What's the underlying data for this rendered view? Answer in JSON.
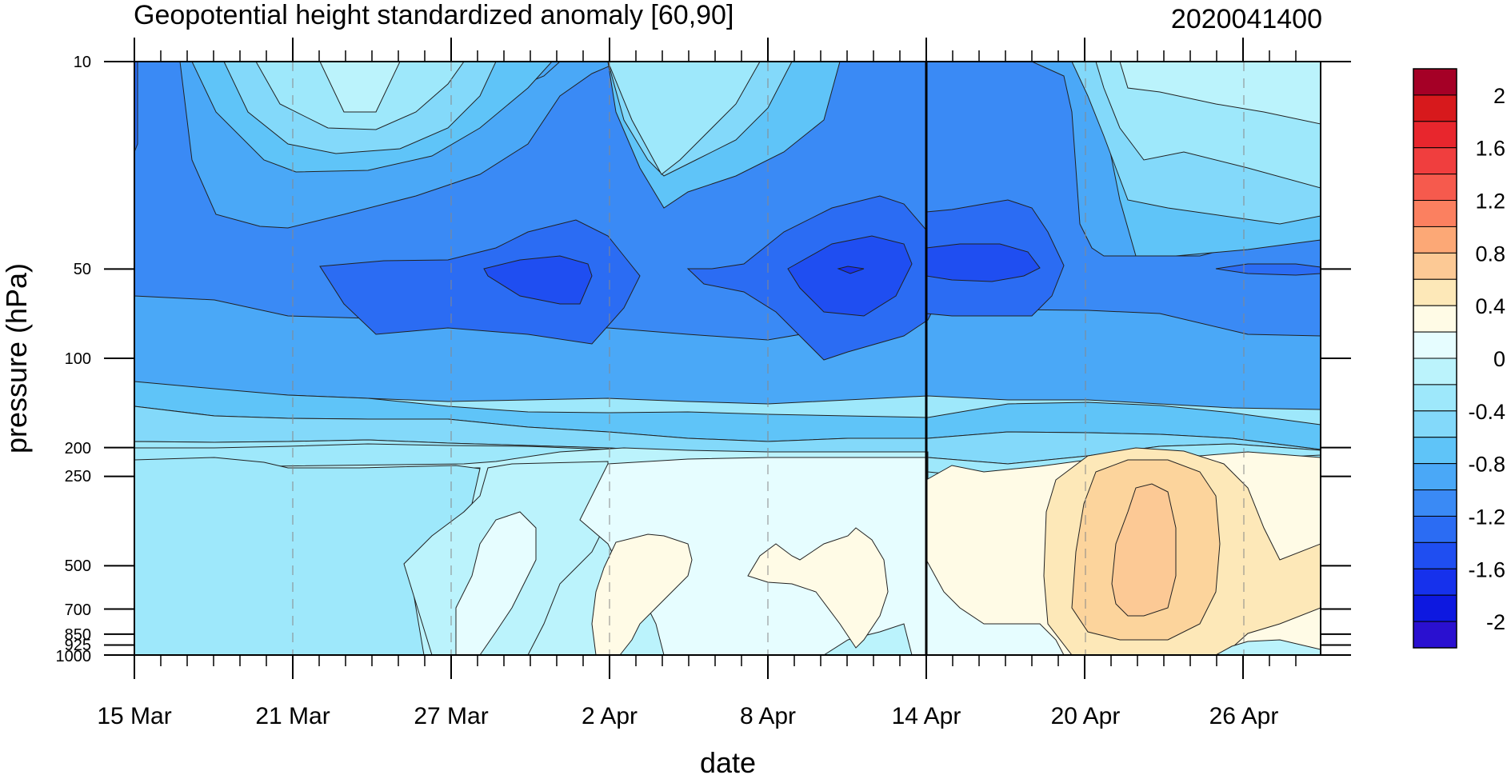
{
  "chart_data": {
    "type": "heatmap",
    "subtype": "filled contour (time-pressure cross section)",
    "title": "Geopotential height standardized anomaly [60,90]",
    "right_label": "2020041400",
    "xlabel": "date",
    "ylabel": "pressure (hPa)",
    "x_tick_labels": [
      "15 Mar",
      "21 Mar",
      "27 Mar",
      "2 Apr",
      "8 Apr",
      "14 Apr",
      "20 Apr",
      "26 Apr"
    ],
    "x_range": [
      "2020-03-15",
      "2020-04-29"
    ],
    "y_tick_labels": [
      "10",
      "50",
      "100",
      "200",
      "250",
      "500",
      "700",
      "850",
      "925",
      "1000"
    ],
    "y_ticks_hpa": [
      10,
      50,
      100,
      200,
      250,
      500,
      700,
      850,
      925,
      1000
    ],
    "y_range_hpa": [
      1000,
      10
    ],
    "y_scale": "log-pressure, inverted (1000 at bottom)",
    "forecast_start_marker": "14 Apr",
    "vertical_gridlines": "dashed, at each labelled date",
    "colorbar": {
      "placement": "right",
      "levels": [
        -2.2,
        -2.0,
        -1.8,
        -1.6,
        -1.4,
        -1.2,
        -1.0,
        -0.8,
        -0.6,
        -0.4,
        -0.2,
        0.0,
        0.2,
        0.4,
        0.6,
        0.8,
        1.0,
        1.2,
        1.4,
        1.6,
        1.8,
        2.0,
        2.2
      ],
      "label_values": [
        2,
        1.6,
        1.2,
        0.8,
        0.4,
        0,
        -0.4,
        -0.8,
        -1.2,
        -1.6,
        -2
      ],
      "label_text": [
        "2",
        "1.6",
        "1.2",
        "0.8",
        "0.4",
        "0",
        "-0.4",
        "-0.8",
        "-1.2",
        "-1.6",
        "-2"
      ],
      "colors_top_to_bottom": [
        "#a50026",
        "#d7191c",
        "#e8262d",
        "#f03e3e",
        "#f65a4d",
        "#fb8060",
        "#fca876",
        "#fcc995",
        "#fde8b8",
        "#fffbe6",
        "#e6fdff",
        "#bbf3fc",
        "#9ee8fb",
        "#83d9fa",
        "#5fc4f8",
        "#4aa8f7",
        "#3a8af5",
        "#2b6cf3",
        "#1f4ef1",
        "#1631ec",
        "#0d18e0",
        "#2a10d0"
      ]
    },
    "fill_palette": {
      "pos_0_2": "#fffbe6",
      "pos_0_4": "#fde8b8",
      "pos_0_6": "#fcd49c",
      "pos_0_8": "#fcc995",
      "zero_to_m0_2": "#e6fdff",
      "m0_2_m0_4": "#bbf3fc",
      "m0_4_m0_6": "#9ee8fb",
      "m0_6_m0_8": "#83d9fa",
      "m0_8_m1_0": "#5fc4f8",
      "m1_0_m1_2": "#4aa8f7",
      "m1_2_m1_4": "#3a8af5",
      "m1_4_m1_6": "#2b6cf3",
      "m1_6_m1_8": "#1f4ef1",
      "m1_8_m2_0": "#1631ec"
    },
    "features": [
      {
        "label": "strongest negative anomaly near 50 hPa",
        "date": "11 Apr",
        "pressure_hpa": 50,
        "value": -2.0
      },
      {
        "label": "negative core near 50 hPa",
        "date": "31 Mar",
        "pressure_hpa": 50,
        "value": -1.8
      },
      {
        "label": "negative core near 50 hPa",
        "date": "17 Apr",
        "pressure_hpa": 50,
        "value": -1.8
      },
      {
        "label": "positive core in troposphere",
        "date": "22 Apr",
        "pressure_hpa": 500,
        "value": 0.8
      },
      {
        "label": "weak positive anomaly lower troposphere",
        "date": "3 Apr",
        "pressure_hpa": 700,
        "value": 0.2
      },
      {
        "label": "weak positive anomaly lower troposphere",
        "date": "10 Apr",
        "pressure_hpa": 500,
        "value": 0.2
      },
      {
        "label": "weak negative anomaly upper stratosphere",
        "date": "23 Mar",
        "pressure_hpa": 10,
        "value": -0.4
      }
    ]
  }
}
